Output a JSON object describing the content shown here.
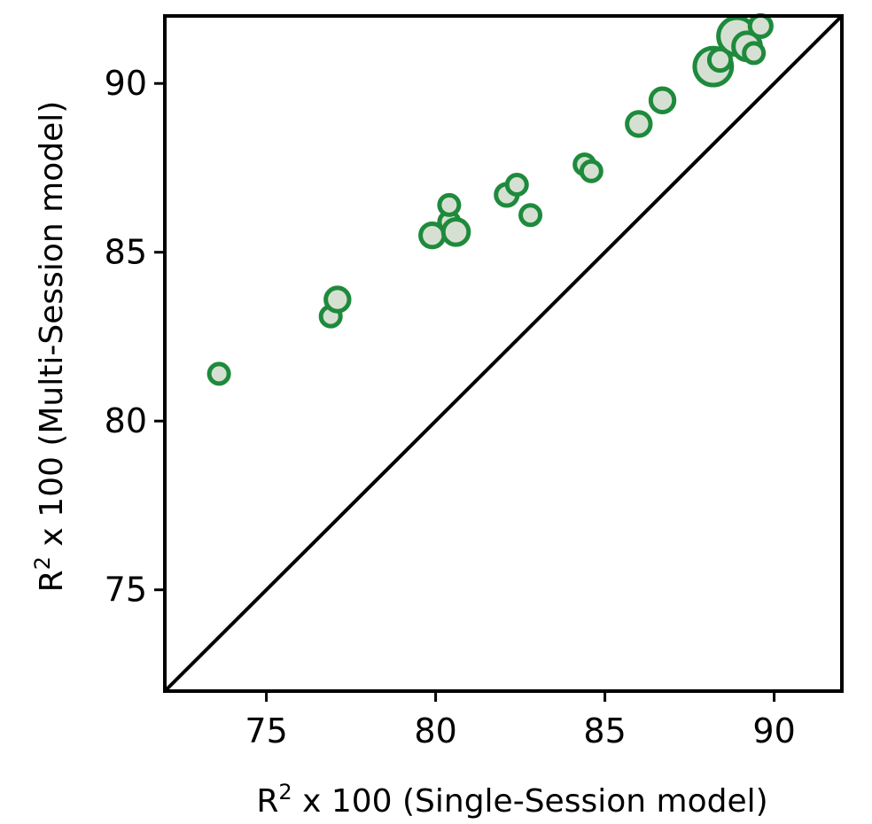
{
  "chart_data": {
    "type": "scatter",
    "xlabel": "R² x 100 (Single-Session model)",
    "ylabel": "R² x 100 (Multi-Session model)",
    "xlabel_parts": {
      "base": "R",
      "sup": "2",
      "rest": " x 100 (Single-Session model)"
    },
    "ylabel_parts": {
      "base": "R",
      "sup": "2",
      "rest": " x 100 (Multi-Session model)"
    },
    "xlim": [
      72,
      92
    ],
    "ylim": [
      72,
      92
    ],
    "xticks": [
      75,
      80,
      85,
      90
    ],
    "yticks": [
      75,
      80,
      85,
      90
    ],
    "xtick_labels": [
      "75",
      "80",
      "85",
      "90"
    ],
    "ytick_labels": [
      "75",
      "80",
      "85",
      "90"
    ],
    "reference_line": {
      "from": [
        72,
        72
      ],
      "to": [
        92,
        92
      ],
      "color": "#000000"
    },
    "grid": false,
    "marker_edge_color": "#1e8a3c",
    "marker_face_color": "#d6e0d2",
    "points": [
      {
        "x": 73.6,
        "y": 81.4,
        "size": 1
      },
      {
        "x": 76.9,
        "y": 83.1,
        "size": 1
      },
      {
        "x": 77.1,
        "y": 83.6,
        "size": 1.2
      },
      {
        "x": 79.9,
        "y": 85.5,
        "size": 1.2
      },
      {
        "x": 80.4,
        "y": 85.9,
        "size": 1
      },
      {
        "x": 80.4,
        "y": 86.4,
        "size": 1
      },
      {
        "x": 80.6,
        "y": 85.6,
        "size": 1.3
      },
      {
        "x": 82.1,
        "y": 86.7,
        "size": 1.1
      },
      {
        "x": 82.4,
        "y": 87.0,
        "size": 1
      },
      {
        "x": 82.8,
        "y": 86.1,
        "size": 1
      },
      {
        "x": 84.4,
        "y": 87.6,
        "size": 1
      },
      {
        "x": 84.6,
        "y": 87.4,
        "size": 1
      },
      {
        "x": 86.0,
        "y": 88.8,
        "size": 1.2
      },
      {
        "x": 86.7,
        "y": 89.5,
        "size": 1.2
      },
      {
        "x": 88.2,
        "y": 90.5,
        "size": 1.9
      },
      {
        "x": 88.4,
        "y": 90.7,
        "size": 1.1
      },
      {
        "x": 88.9,
        "y": 91.4,
        "size": 1.9
      },
      {
        "x": 89.2,
        "y": 91.1,
        "size": 1.4
      },
      {
        "x": 89.4,
        "y": 90.9,
        "size": 1
      },
      {
        "x": 89.6,
        "y": 91.7,
        "size": 1.1
      }
    ]
  }
}
